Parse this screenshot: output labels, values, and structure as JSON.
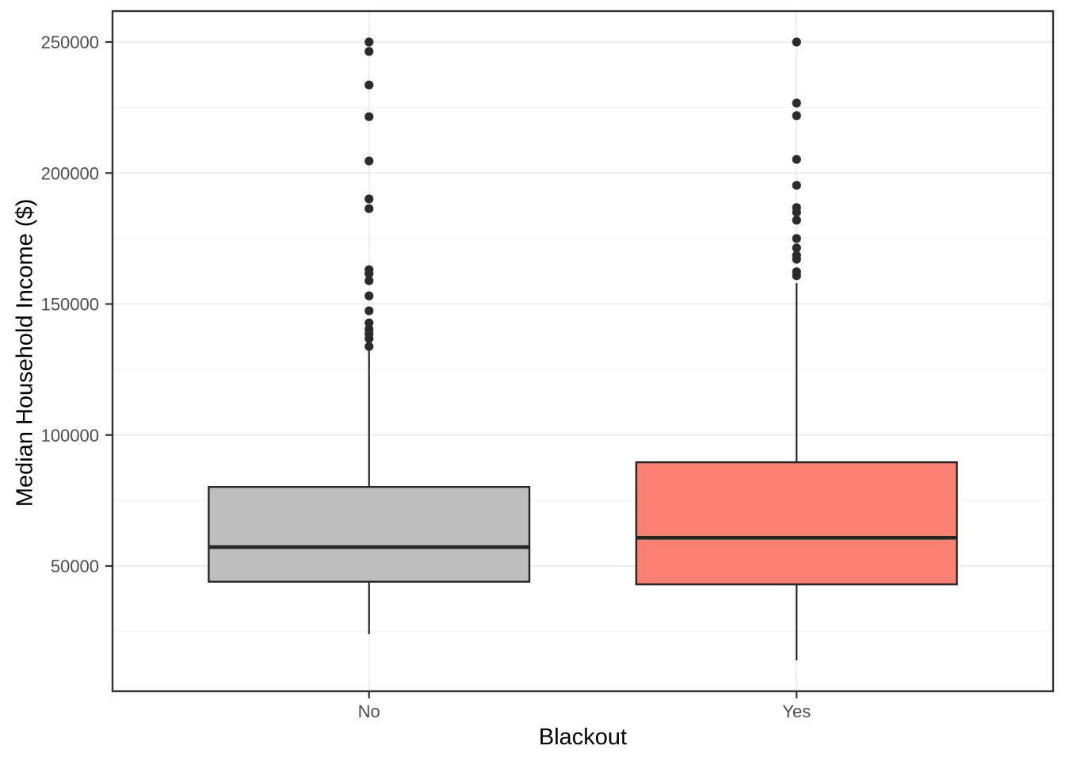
{
  "chart_data": {
    "type": "boxplot",
    "title": "",
    "xlabel": "Blackout",
    "ylabel": "Median Household Income ($)",
    "categories": [
      "No",
      "Yes"
    ],
    "y_ticks": [
      50000,
      100000,
      150000,
      200000,
      250000
    ],
    "y_minor_ticks": [
      25000,
      75000,
      125000,
      175000,
      225000
    ],
    "ylim": [
      2200,
      261800
    ],
    "grid": "major and minor horizontal, major vertical at categories",
    "legend": "none",
    "series": [
      {
        "name": "No",
        "fill": "#bebebe",
        "whisker_low": 24000,
        "q1": 44000,
        "median": 57200,
        "q3": 80200,
        "whisker_high": 133000,
        "outliers": [
          133800,
          136800,
          138600,
          140400,
          142800,
          147400,
          153100,
          158900,
          161600,
          163100,
          186400,
          190100,
          204600,
          221500,
          233600,
          246400,
          250000
        ]
      },
      {
        "name": "Yes",
        "fill": "#fa8072",
        "whisker_low": 14000,
        "q1": 43000,
        "median": 60800,
        "q3": 89600,
        "whisker_high": 158000,
        "outliers": [
          160800,
          162300,
          167100,
          168600,
          171400,
          175000,
          182000,
          185000,
          186800,
          195300,
          205200,
          221900,
          226700,
          250000
        ]
      }
    ],
    "colors": {
      "panel_background": "#ffffff",
      "panel_border": "#333333",
      "grid_major": "#eaeaea",
      "grid_minor": "#f1f1f1",
      "tick_mark": "#333333",
      "tick_label": "#4d4d4d",
      "axis_title": "#000000",
      "box_outline": "#262626",
      "median_line": "#262626",
      "outlier_point": "#2b2b2b"
    }
  }
}
